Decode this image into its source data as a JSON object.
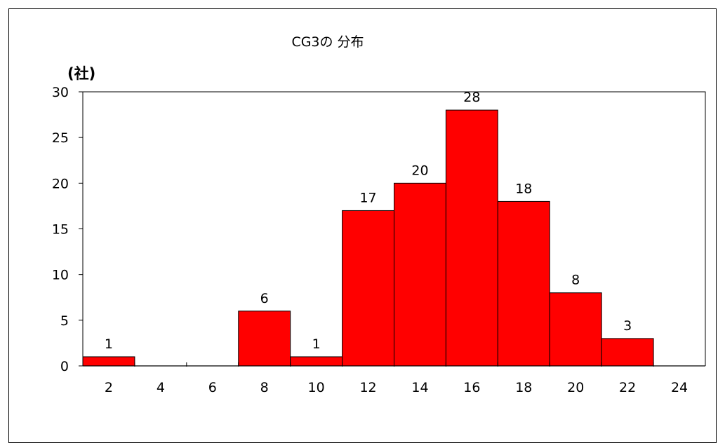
{
  "chart_data": {
    "type": "bar",
    "title": "CG3の 分布",
    "ylabel": "(社)",
    "xlabel": "",
    "ylim": [
      0,
      30
    ],
    "yticks": [
      0,
      5,
      10,
      15,
      20,
      25,
      30
    ],
    "xlim": [
      1,
      25
    ],
    "xticks": [
      2,
      4,
      6,
      8,
      10,
      12,
      14,
      16,
      18,
      20,
      22,
      24
    ],
    "bar_width": 2,
    "x": [
      2,
      4,
      6,
      8,
      10,
      12,
      14,
      16,
      18,
      20,
      22
    ],
    "values": [
      1,
      0,
      0,
      6,
      1,
      17,
      20,
      28,
      18,
      8,
      3
    ],
    "data_labels": [
      "1",
      "",
      "",
      "6",
      "1",
      "17",
      "20",
      "28",
      "18",
      "8",
      "3"
    ],
    "bar_color": "#ff0000",
    "grid": false,
    "legend": "none"
  }
}
